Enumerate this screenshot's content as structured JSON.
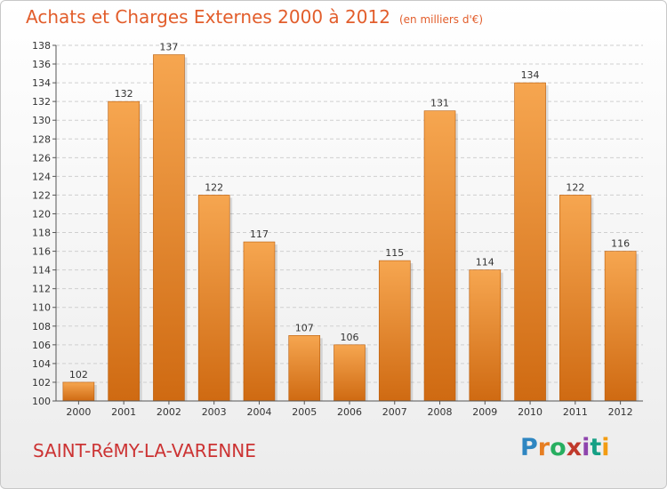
{
  "header": {
    "title": "Achats et Charges Externes 2000 à 2012",
    "subtitle": "(en milliers d'€)"
  },
  "footer": {
    "commune": "SAINT-RéMY-LA-VARENNE",
    "logo": [
      "P",
      "r",
      "o",
      "x",
      "i",
      "t",
      "i"
    ]
  },
  "colors": {
    "bar_top": "#f6a650",
    "bar_bottom": "#cf6a12",
    "title": "#e25d2b",
    "commune": "#cc3333"
  },
  "chart_data": {
    "type": "bar",
    "title": "Achats et Charges Externes 2000 à 2012",
    "subtitle": "(en milliers d'€)",
    "categories": [
      "2000",
      "2001",
      "2002",
      "2003",
      "2004",
      "2005",
      "2006",
      "2007",
      "2008",
      "2009",
      "2010",
      "2011",
      "2012"
    ],
    "values": [
      102,
      132,
      137,
      122,
      117,
      107,
      106,
      115,
      131,
      114,
      134,
      122,
      116
    ],
    "ylim": [
      100,
      138
    ],
    "yticks": [
      100,
      102,
      104,
      106,
      108,
      110,
      112,
      114,
      116,
      118,
      120,
      122,
      124,
      126,
      128,
      130,
      132,
      134,
      136,
      138
    ],
    "grid": true,
    "data_labels": true
  }
}
